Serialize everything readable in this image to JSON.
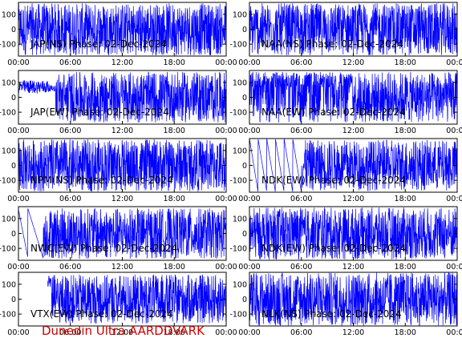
{
  "colors": {
    "trace": "#0000ff",
    "axis": "#000000",
    "footer": "#d00000"
  },
  "footer": {
    "text": "Dunedin Ultra AARDDVARK"
  },
  "chart_data": [
    {
      "type": "line",
      "title": "JAP(NS) Phase: 02-Dec-2024",
      "x_ticks": [
        "00:00",
        "06:00",
        "12:00",
        "18:00",
        "00:00"
      ],
      "y_ticks": [
        "100",
        "0",
        "-100"
      ],
      "ylim": [
        -180,
        180
      ],
      "pattern": "dense"
    },
    {
      "type": "line",
      "title": "NAA(NS) Phase: 02-Dec-2024",
      "x_ticks": [
        "00:00",
        "06:00",
        "12:00",
        "18:00",
        "00:00"
      ],
      "y_ticks": [
        "100",
        "0",
        "-100"
      ],
      "ylim": [
        -180,
        180
      ],
      "pattern": "dense"
    },
    {
      "type": "line",
      "title": "JAP(EW) Phase: 02-Dec-2024",
      "x_ticks": [
        "00:00",
        "06:00",
        "12:00",
        "18:00",
        "00:00"
      ],
      "y_ticks": [
        "100",
        "0",
        "-100"
      ],
      "ylim": [
        -180,
        180
      ],
      "pattern": "early-band"
    },
    {
      "type": "line",
      "title": "NAA(EW) Phase: 02-Dec-2024",
      "x_ticks": [
        "00:00",
        "06:00",
        "12:00",
        "18:00",
        "00:00"
      ],
      "y_ticks": [
        "100",
        "0",
        "-100"
      ],
      "ylim": [
        -180,
        180
      ],
      "pattern": "mixed"
    },
    {
      "type": "line",
      "title": "NPM(NS) Phase: 02-Dec-2024",
      "x_ticks": [
        "00:00",
        "06:00",
        "12:00",
        "18:00",
        "00:00"
      ],
      "y_ticks": [
        "100",
        "0",
        "-100"
      ],
      "ylim": [
        -180,
        180
      ],
      "pattern": "dense"
    },
    {
      "type": "line",
      "title": "NDK(EW) Phase: 02-Dec-2024",
      "x_ticks": [
        "00:00",
        "06:00",
        "12:00",
        "18:00",
        "00:00"
      ],
      "y_ticks": [
        "100",
        "0",
        "-100"
      ],
      "ylim": [
        -180,
        180
      ],
      "pattern": "ramps"
    },
    {
      "type": "line",
      "title": "NWC(EW) Phase: 02-Dec-2024",
      "x_ticks": [
        "00:00",
        "06:00",
        "12:00",
        "18:00",
        "00:00"
      ],
      "y_ticks": [
        "100",
        "0",
        "-100"
      ],
      "ylim": [
        -180,
        180
      ],
      "pattern": "nwc"
    },
    {
      "type": "line",
      "title": "NDK(EW) Phase: 02-Dec-2024",
      "x_ticks": [
        "00:00",
        "06:00",
        "12:00",
        "18:00",
        "00:00"
      ],
      "y_ticks": [
        "100",
        "0",
        "-100"
      ],
      "ylim": [
        -180,
        180
      ],
      "pattern": "dense"
    },
    {
      "type": "line",
      "title": "VTX(EW) Phase: 02-Dec-2024",
      "x_ticks": [
        "00:00",
        "06:00",
        "12:00",
        "18:00",
        "00:00"
      ],
      "y_ticks": [
        "100",
        "0",
        "-100"
      ],
      "ylim": [
        -180,
        180
      ],
      "pattern": "late-dense"
    },
    {
      "type": "line",
      "title": "NLK(NS) Phase: 02-Dec-2024",
      "x_ticks": [
        "00:00",
        "06:00",
        "12:00",
        "18:00",
        "00:00"
      ],
      "y_ticks": [
        "100",
        "0",
        "-100"
      ],
      "ylim": [
        -180,
        180
      ],
      "pattern": "solid"
    }
  ]
}
